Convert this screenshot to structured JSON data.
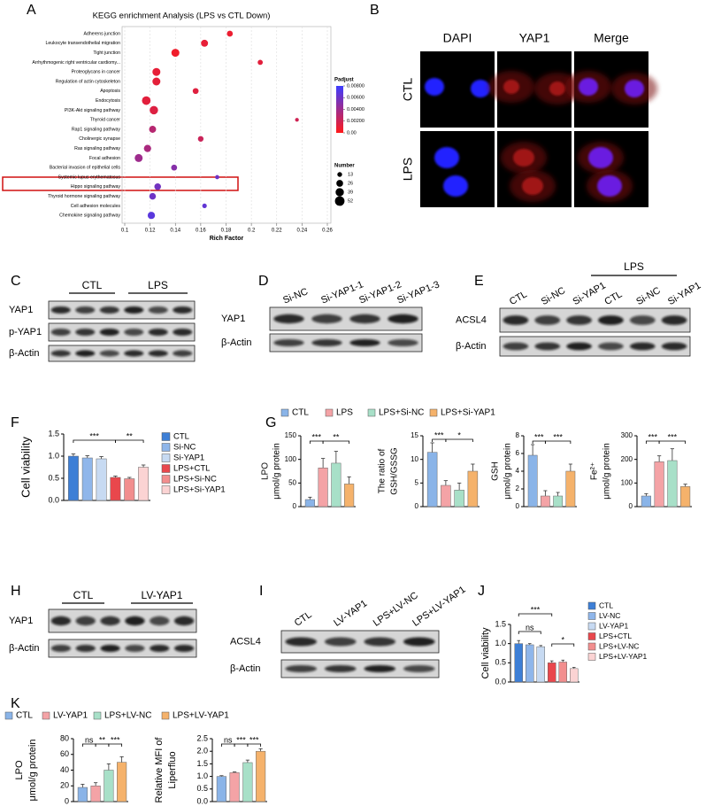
{
  "panel_labels": [
    "A",
    "B",
    "C",
    "D",
    "E",
    "F",
    "G",
    "H",
    "I",
    "J",
    "K"
  ],
  "chart_data": [
    {
      "type": "scatter",
      "title": "KEGG enrichment Analysis (LPS  vs CTL Down)",
      "xlabel": "Rich Factor",
      "categories": [
        "Adherens junction",
        "Leukocyte transendothelial migration",
        "Tight junction",
        "Arrhythmogenic right ventricular cardiomy...",
        "Proteoglycans in cancer",
        "Regulation of actin cytoskeleton",
        "Apoptosis",
        "Endocytosis",
        "PI3K-Akt signaling pathway",
        "Thyroid cancer",
        "Rap1 signaling pathway",
        "Cholinergic synapse",
        "Ras signaling pathway",
        "Focal adhesion",
        "Bacterial invasion of epithelial cells",
        "Systemic lupus erythematosus",
        "Hippo signaling pathway",
        "Thyroid hormone signaling pathway",
        "Cell adhesion molecules",
        "Chemokine signaling pathway"
      ],
      "x": [
        0.183,
        0.163,
        0.14,
        0.207,
        0.125,
        0.125,
        0.156,
        0.117,
        0.123,
        0.236,
        0.122,
        0.16,
        0.118,
        0.111,
        0.139,
        0.173,
        0.126,
        0.122,
        0.163,
        0.121
      ],
      "sizes": [
        20,
        28,
        36,
        15,
        36,
        36,
        20,
        42,
        40,
        8,
        28,
        18,
        30,
        36,
        20,
        10,
        25,
        25,
        12,
        30
      ],
      "padjust": [
        0.0008,
        0.001,
        0.0006,
        0.0012,
        0.001,
        0.0011,
        0.0013,
        0.0012,
        0.0014,
        0.002,
        0.003,
        0.0022,
        0.0035,
        0.004,
        0.005,
        0.006,
        0.0058,
        0.006,
        0.0065,
        0.0068
      ],
      "xlim": [
        0.1,
        0.26
      ],
      "xticks": [
        0.1,
        0.12,
        0.14,
        0.16,
        0.18,
        0.2,
        0.22,
        0.24,
        0.26
      ],
      "grid": true,
      "colorbar": {
        "title": "Padjust",
        "lim": [
          0,
          0.008
        ],
        "colors": [
          "#ff1a1a",
          "#3d3dff"
        ],
        "ticks": [
          {
            "value": 0.008,
            "label": "0.00800"
          },
          {
            "value": 0.006,
            "label": "0.00600"
          },
          {
            "value": 0.004,
            "label": "0.00400"
          },
          {
            "value": 0.002,
            "label": "0.00200"
          },
          {
            "value": 0,
            "label": "0.00"
          }
        ]
      },
      "size_legend": {
        "title": "Number",
        "values": [
          13,
          26,
          39,
          52
        ]
      }
    },
    {
      "type": "bar",
      "categories": [
        "CTL",
        "Si-NC",
        "Si-YAP1",
        "LPS+CTL",
        "LPS+Si-NC",
        "LPS+Si-YAP1"
      ],
      "colors": [
        "#3d7fd6",
        "#8fb6ea",
        "#c7daf2",
        "#e9474c",
        "#f28e8e",
        "#fbd3d3"
      ],
      "panels": [
        {
          "ylabel": [
            "Cell viability"
          ],
          "values": [
            1.0,
            0.96,
            0.94,
            0.52,
            0.49,
            0.75
          ],
          "errors": [
            0.05,
            0.05,
            0.05,
            0.03,
            0.03,
            0.05
          ],
          "ylim": [
            0,
            1.5
          ],
          "yticks": [
            {
              "value": 0,
              "label": "0.0"
            },
            0.5,
            {
              "value": 1,
              "label": "1.0"
            },
            1.5
          ],
          "annotations": [
            "***",
            "**"
          ]
        }
      ]
    },
    {
      "type": "bar",
      "categories": [
        "CTL",
        "LPS",
        "LPS+Si-NC",
        "LPS+Si-YAP1"
      ],
      "colors": [
        "#8ab4e8",
        "#f4a3a6",
        "#a8e0c8",
        "#f5b26b"
      ],
      "panels": [
        {
          "ylabel": [
            "LPO",
            "μmol/g protein"
          ],
          "values": [
            15,
            82,
            92,
            48
          ],
          "errors": [
            5,
            20,
            25,
            15
          ],
          "ylim": [
            0,
            150
          ],
          "yticks": [
            0,
            50,
            100,
            150
          ],
          "annotations": [
            "***",
            "**"
          ]
        },
        {
          "ylabel": [
            "The ratio of",
            "GSH/GSSG"
          ],
          "values": [
            11.5,
            4.5,
            3.5,
            7.5
          ],
          "errors": [
            2,
            1,
            1.5,
            1.5
          ],
          "ylim": [
            0,
            15
          ],
          "yticks": [
            0,
            5,
            10,
            15
          ],
          "annotations": [
            "***",
            "*"
          ]
        },
        {
          "ylabel": [
            "GSH",
            "μmol/g protein"
          ],
          "values": [
            5.8,
            1.2,
            1.2,
            4.0
          ],
          "errors": [
            1.2,
            0.6,
            0.4,
            0.8
          ],
          "ylim": [
            0,
            8
          ],
          "yticks": [
            0,
            2,
            4,
            6,
            8
          ],
          "annotations": [
            "***",
            "***"
          ]
        },
        {
          "ylabel": [
            "Fe²⁺",
            "μmol/g protein"
          ],
          "values": [
            45,
            190,
            195,
            85
          ],
          "errors": [
            10,
            25,
            50,
            10
          ],
          "ylim": [
            0,
            300
          ],
          "yticks": [
            0,
            100,
            200,
            300
          ],
          "annotations": [
            "***",
            "***"
          ]
        }
      ]
    },
    {
      "type": "bar",
      "categories": [
        "CTL",
        "LV-NC",
        "LV-YAP1",
        "LPS+CTL",
        "LPS+LV-NC",
        "LPS+LV-YAP1"
      ],
      "colors": [
        "#3d7fd6",
        "#8fb6ea",
        "#c7daf2",
        "#e9474c",
        "#f28e8e",
        "#fbd3d3"
      ],
      "panels": [
        {
          "ylabel": [
            "Cell viability"
          ],
          "values": [
            1.0,
            0.97,
            0.92,
            0.5,
            0.52,
            0.35
          ],
          "errors": [
            0.08,
            0.03,
            0.03,
            0.05,
            0.05,
            0.03
          ],
          "ylim": [
            0,
            1.5
          ],
          "yticks": [
            {
              "value": 0,
              "label": "0.0"
            },
            0.5,
            {
              "value": 1,
              "label": "1.0"
            },
            1.5
          ],
          "annotations": [
            "***",
            "ns",
            "*"
          ]
        }
      ]
    },
    {
      "type": "bar",
      "categories": [
        "CTL",
        "LV-YAP1",
        "LPS+LV-NC",
        "LPS+LV-YAP1"
      ],
      "colors": [
        "#8ab4e8",
        "#f4a3a6",
        "#a8e0c8",
        "#f5b26b"
      ],
      "panels": [
        {
          "ylabel": [
            "LPO",
            "μmol/g protein"
          ],
          "values": [
            18,
            20,
            40,
            50
          ],
          "errors": [
            4,
            4,
            8,
            7
          ],
          "ylim": [
            0,
            80
          ],
          "yticks": [
            0,
            20,
            40,
            60,
            80
          ],
          "annotations": [
            "ns",
            "**",
            "***"
          ]
        },
        {
          "ylabel": [
            "Relative MFI of",
            "Liperfluo"
          ],
          "values": [
            1.0,
            1.15,
            1.55,
            2.0
          ],
          "errors": [
            0.03,
            0.03,
            0.1,
            0.1
          ],
          "ylim": [
            0,
            2.5
          ],
          "yticks": [
            {
              "value": 0,
              "label": "0.0"
            },
            0.5,
            {
              "value": 1,
              "label": "1.0"
            },
            1.5,
            {
              "value": 2,
              "label": "2.0"
            },
            2.5
          ],
          "annotations": [
            "ns",
            "***",
            "***"
          ]
        }
      ]
    }
  ],
  "microscopy": {
    "columns": [
      "DAPI",
      "YAP1",
      "Merge"
    ],
    "column_colors": [
      "#1a1aa8",
      "#cc0000",
      "#000000"
    ],
    "rows": [
      "CTL",
      "LPS"
    ]
  },
  "blots": [
    {
      "groups": [
        "CTL",
        "LPS"
      ],
      "rows": [
        "YAP1",
        "p-YAP1",
        "β-Actin"
      ]
    },
    {
      "lanes": [
        "Si-NC",
        "Si-YAP1-1",
        "Si-YAP1-2",
        "Si-YAP1-3"
      ],
      "rows": [
        "YAP1",
        "β-Actin"
      ]
    },
    {
      "groups": [
        "LPS"
      ],
      "lanes": [
        "CTL",
        "Si-NC",
        "Si-YAP1",
        "CTL",
        "Si-NC",
        "Si-YAP1"
      ],
      "rows": [
        "ACSL4",
        "β-Actin"
      ]
    },
    {
      "groups": [
        "CTL",
        "LV-YAP1"
      ],
      "rows": [
        "YAP1",
        "β-Actin"
      ]
    },
    {
      "lanes": [
        "CTL",
        "LV-YAP1",
        "LPS+LV-NC",
        "LPS+LV-YAP1"
      ],
      "rows": [
        "ACSL4",
        "β-Actin"
      ]
    }
  ]
}
